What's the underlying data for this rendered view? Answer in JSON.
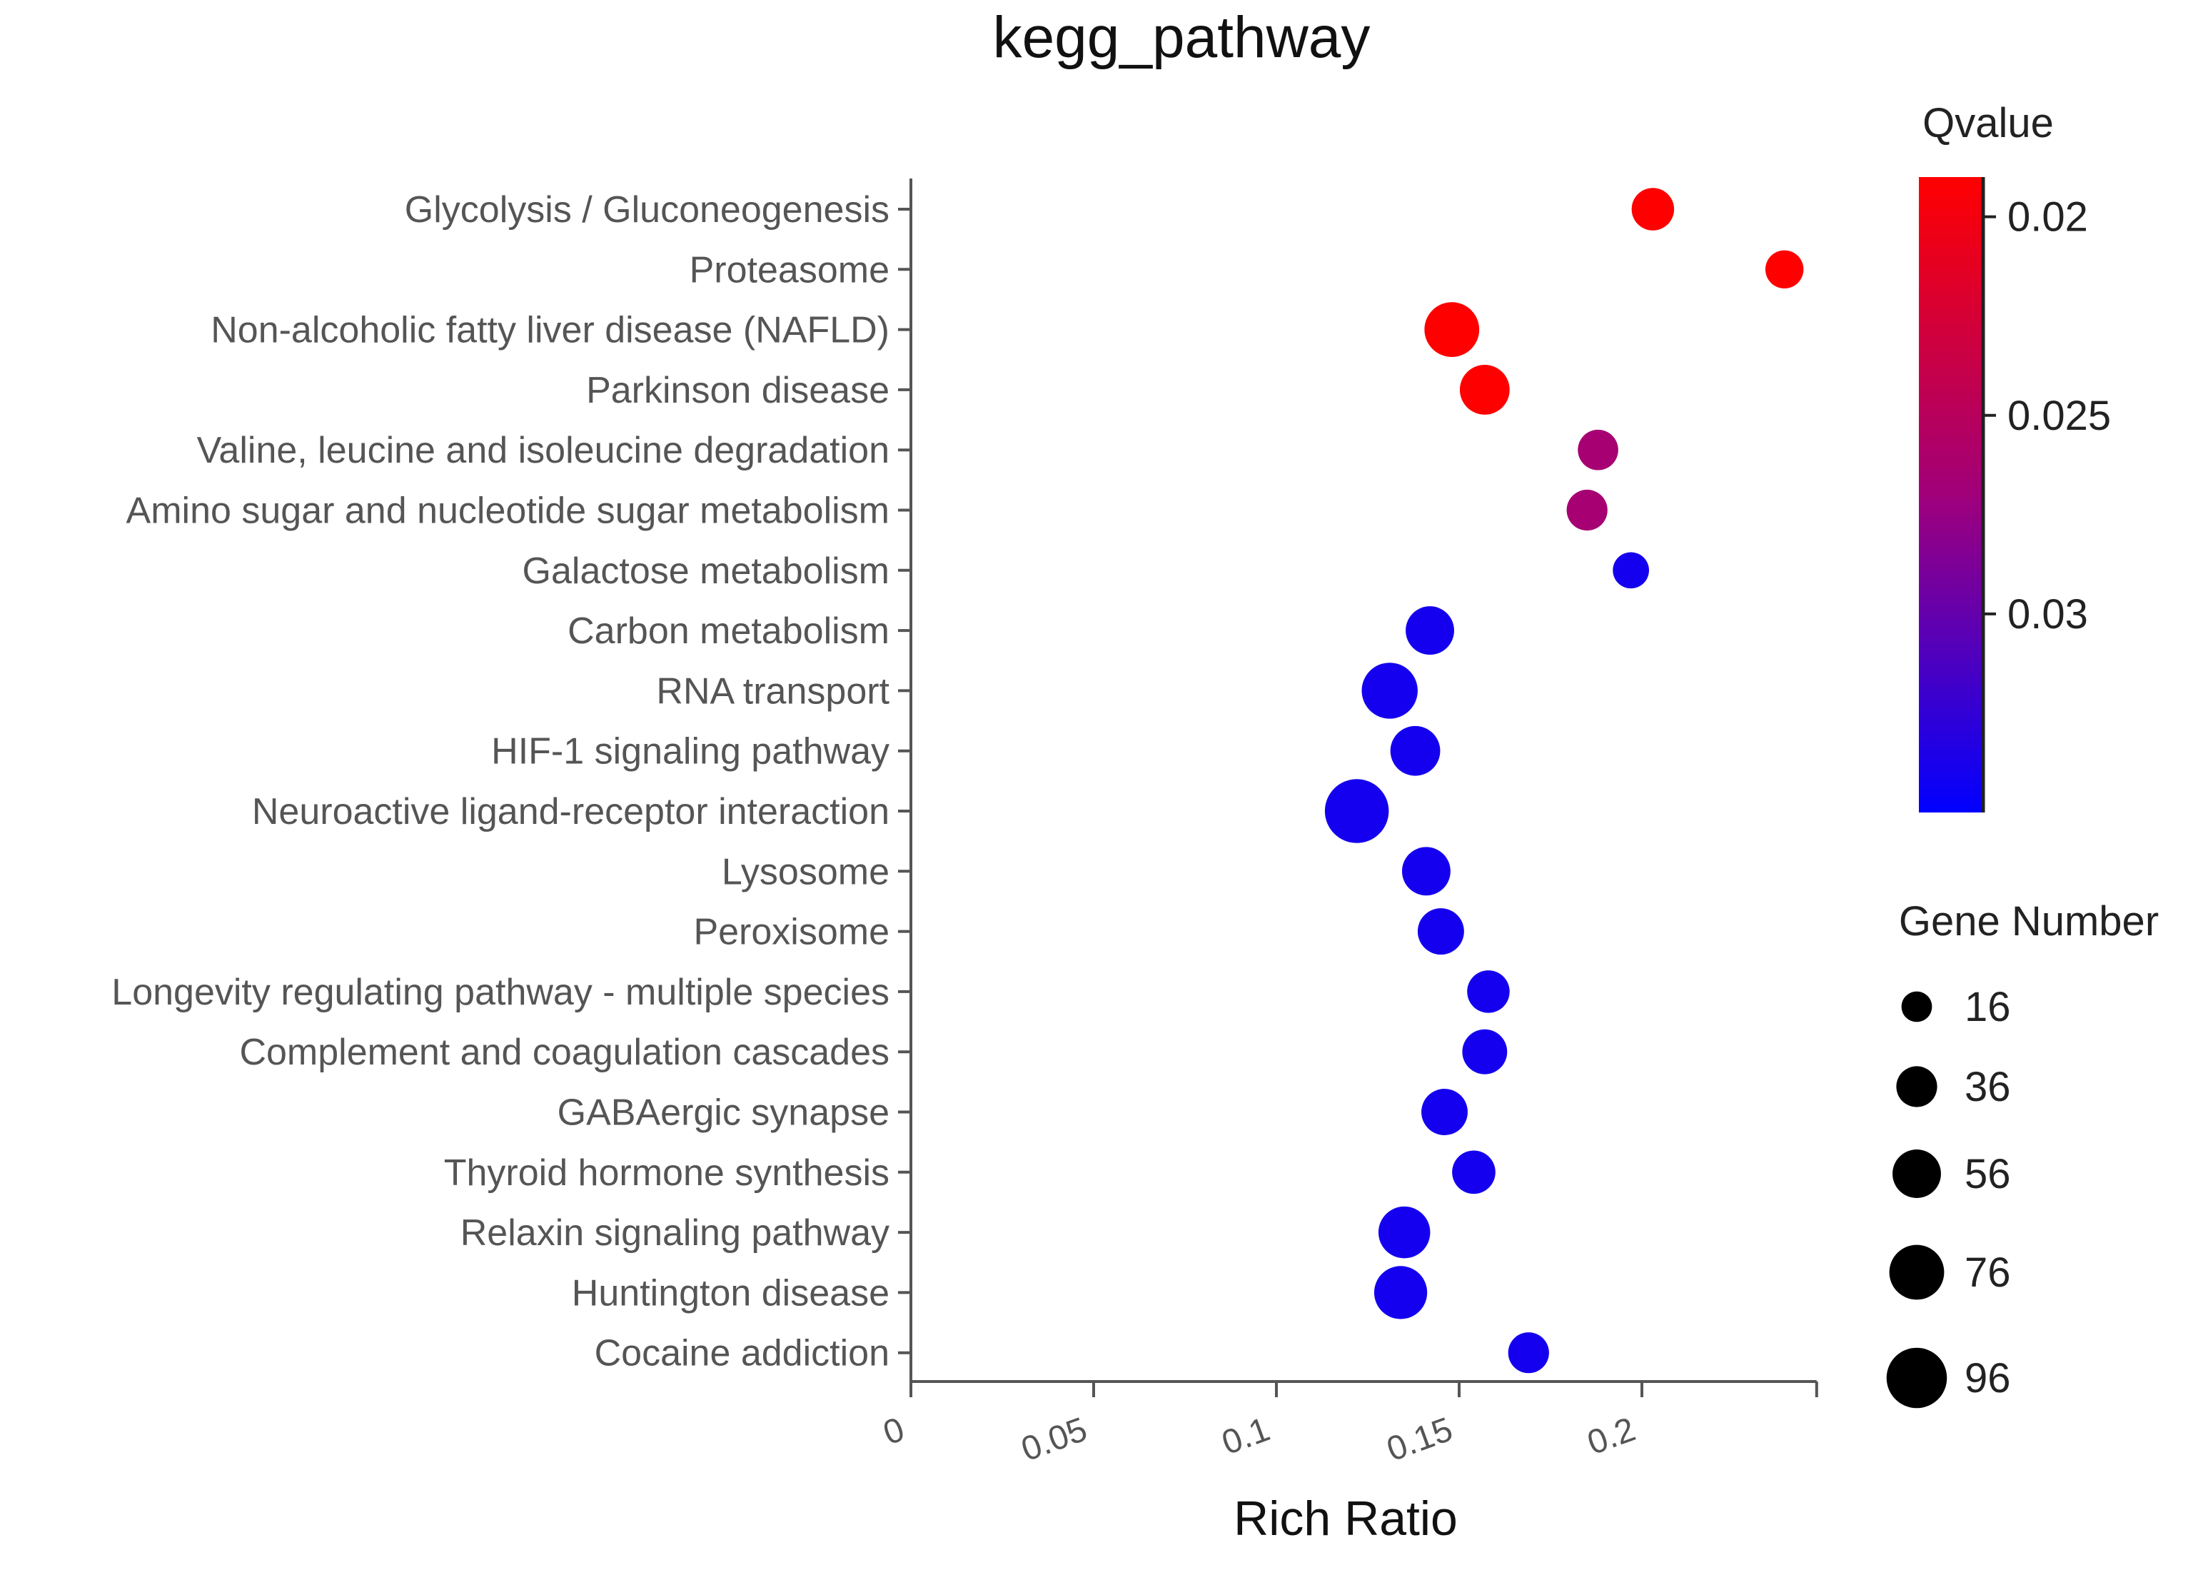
{
  "chart_data": {
    "type": "scatter",
    "title": "kegg_pathway",
    "xlabel": "Rich Ratio",
    "ylabel": "",
    "xlim": [
      0,
      0.24
    ],
    "xticks": [
      0,
      0.05,
      0.1,
      0.15,
      0.2
    ],
    "xtick_labels": [
      "0",
      "0.05",
      "0.1",
      "0.15",
      "0.2"
    ],
    "grid": false,
    "categories": [
      "Glycolysis / Gluconeogenesis",
      "Proteasome",
      "Non-alcoholic fatty liver disease (NAFLD)",
      "Parkinson disease",
      "Valine, leucine and isoleucine degradation",
      "Amino sugar and nucleotide sugar metabolism",
      "Galactose metabolism",
      "Carbon metabolism",
      "RNA transport",
      "HIF-1 signaling pathway",
      "Neuroactive ligand-receptor interaction",
      "Lysosome",
      "Peroxisome",
      "Longevity regulating pathway - multiple species",
      "Complement and coagulation cascades",
      "GABAergic synapse",
      "Thyroid hormone synthesis",
      "Relaxin signaling pathway",
      "Huntington disease",
      "Cocaine addiction"
    ],
    "points": [
      {
        "pathway": "Glycolysis / Gluconeogenesis",
        "rich_ratio": 0.203,
        "qvalue": 0.019,
        "gene_number": 40
      },
      {
        "pathway": "Proteasome",
        "rich_ratio": 0.239,
        "qvalue": 0.019,
        "gene_number": 30
      },
      {
        "pathway": "Non-alcoholic fatty liver disease (NAFLD)",
        "rich_ratio": 0.148,
        "qvalue": 0.019,
        "gene_number": 76
      },
      {
        "pathway": "Parkinson disease",
        "rich_ratio": 0.157,
        "qvalue": 0.019,
        "gene_number": 60
      },
      {
        "pathway": "Valine, leucine and isoleucine degradation",
        "rich_ratio": 0.188,
        "qvalue": 0.0265,
        "gene_number": 35
      },
      {
        "pathway": "Amino sugar and nucleotide sugar metabolism",
        "rich_ratio": 0.185,
        "qvalue": 0.0265,
        "gene_number": 36
      },
      {
        "pathway": "Galactose metabolism",
        "rich_ratio": 0.197,
        "qvalue": 0.034,
        "gene_number": 26
      },
      {
        "pathway": "Carbon metabolism",
        "rich_ratio": 0.142,
        "qvalue": 0.034,
        "gene_number": 56
      },
      {
        "pathway": "RNA transport",
        "rich_ratio": 0.131,
        "qvalue": 0.034,
        "gene_number": 80
      },
      {
        "pathway": "HIF-1 signaling pathway",
        "rich_ratio": 0.138,
        "qvalue": 0.034,
        "gene_number": 60
      },
      {
        "pathway": "Neuroactive ligand-receptor interaction",
        "rich_ratio": 0.122,
        "qvalue": 0.034,
        "gene_number": 110
      },
      {
        "pathway": "Lysosome",
        "rich_ratio": 0.141,
        "qvalue": 0.034,
        "gene_number": 56
      },
      {
        "pathway": "Peroxisome",
        "rich_ratio": 0.145,
        "qvalue": 0.034,
        "gene_number": 50
      },
      {
        "pathway": "Longevity regulating pathway - multiple species",
        "rich_ratio": 0.158,
        "qvalue": 0.034,
        "gene_number": 40
      },
      {
        "pathway": "Complement and coagulation cascades",
        "rich_ratio": 0.157,
        "qvalue": 0.034,
        "gene_number": 46
      },
      {
        "pathway": "GABAergic synapse",
        "rich_ratio": 0.146,
        "qvalue": 0.034,
        "gene_number": 50
      },
      {
        "pathway": "Thyroid hormone synthesis",
        "rich_ratio": 0.154,
        "qvalue": 0.034,
        "gene_number": 42
      },
      {
        "pathway": "Relaxin signaling pathway",
        "rich_ratio": 0.135,
        "qvalue": 0.034,
        "gene_number": 66
      },
      {
        "pathway": "Huntington disease",
        "rich_ratio": 0.134,
        "qvalue": 0.034,
        "gene_number": 70
      },
      {
        "pathway": "Cocaine addiction",
        "rich_ratio": 0.169,
        "qvalue": 0.034,
        "gene_number": 36
      }
    ],
    "color_legend": {
      "title": "Qvalue",
      "range": [
        0.019,
        0.035
      ],
      "ticks": [
        0.02,
        0.025,
        0.03
      ],
      "tick_labels": [
        "0.02",
        "0.025",
        "0.03"
      ],
      "low_color": "#ff0000",
      "high_color": "#0000ff"
    },
    "size_legend": {
      "title": "Gene Number",
      "values": [
        16,
        36,
        56,
        76,
        96
      ],
      "labels": [
        "16",
        "36",
        "56",
        "76",
        "96"
      ]
    },
    "legend_position": "right"
  }
}
